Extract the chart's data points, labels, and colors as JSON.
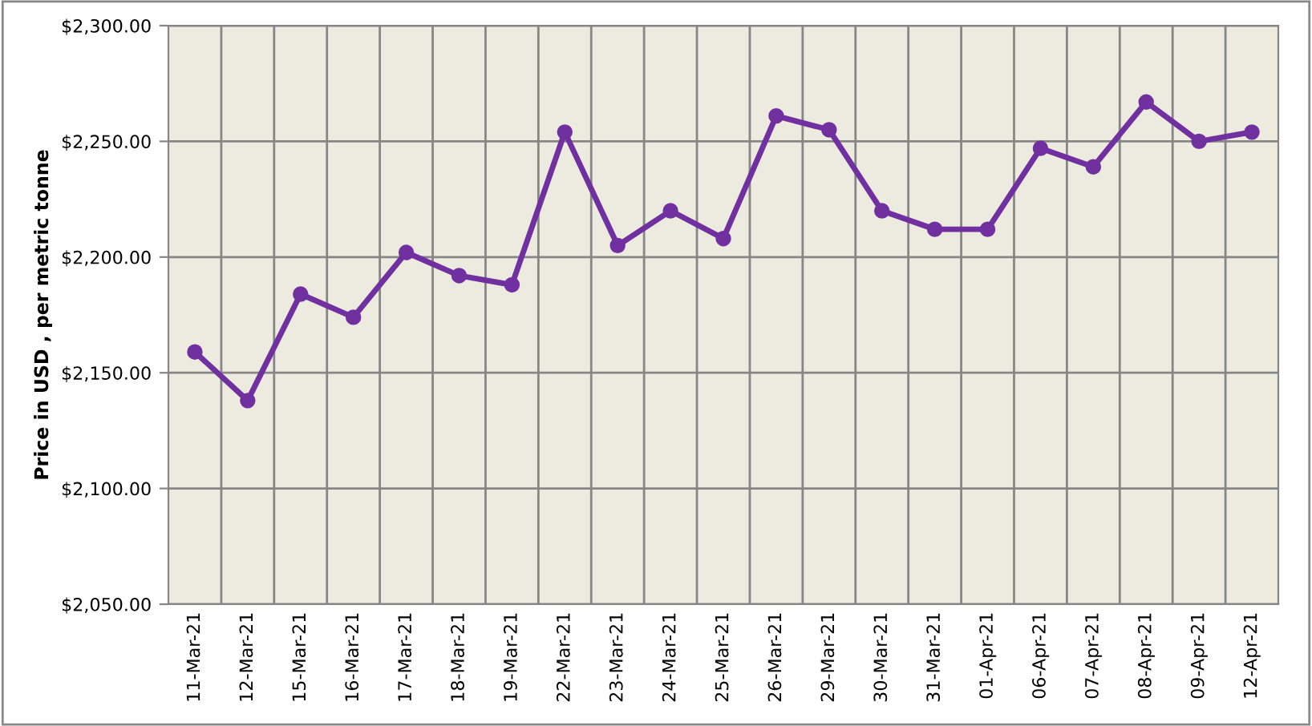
{
  "chart_data": {
    "type": "line",
    "ylabel": "Price in USD , per metric tonne",
    "categories": [
      "11-Mar-21",
      "12-Mar-21",
      "15-Mar-21",
      "16-Mar-21",
      "17-Mar-21",
      "18-Mar-21",
      "19-Mar-21",
      "22-Mar-21",
      "23-Mar-21",
      "24-Mar-21",
      "25-Mar-21",
      "26-Mar-21",
      "29-Mar-21",
      "30-Mar-21",
      "31-Mar-21",
      "01-Apr-21",
      "06-Apr-21",
      "07-Apr-21",
      "08-Apr-21",
      "09-Apr-21",
      "12-Apr-21"
    ],
    "series": [
      {
        "color": "#7030a0",
        "values": [
          2159,
          2138,
          2184,
          2174,
          2202,
          2192,
          2188,
          2254,
          2205,
          2220,
          2208,
          2261,
          2255,
          2220,
          2212,
          2212,
          2247,
          2239,
          2267,
          2250,
          2254
        ]
      }
    ],
    "ylim": [
      2050,
      2300
    ],
    "yticks": [
      {
        "value": 2050,
        "label": "$2,050.00"
      },
      {
        "value": 2100,
        "label": "$2,100.00"
      },
      {
        "value": 2150,
        "label": "$2,150.00"
      },
      {
        "value": 2200,
        "label": "$2,200.00"
      },
      {
        "value": 2250,
        "label": "$2,250.00"
      },
      {
        "value": 2300,
        "label": "$2,300.00"
      }
    ],
    "grid": true,
    "marker": "circle",
    "line_style": "solid"
  }
}
